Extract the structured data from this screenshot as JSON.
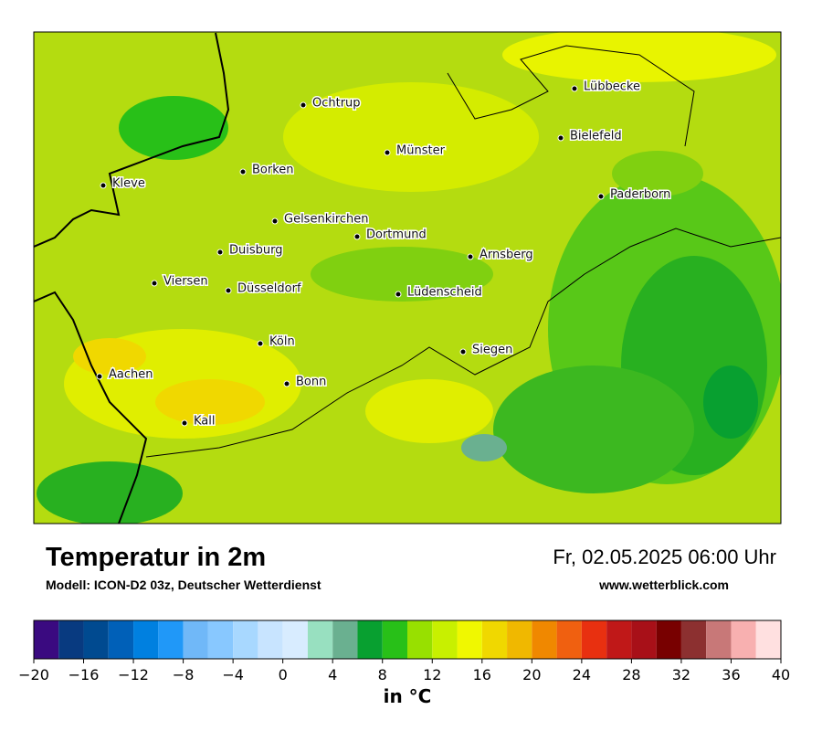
{
  "map": {
    "cities": [
      "Lübbecke",
      "Ochtrup",
      "Bielefeld",
      "Münster",
      "Borken",
      "Kleve",
      "Paderborn",
      "Gelsenkirchen",
      "Dortmund",
      "Duisburg",
      "Arnsberg",
      "Viersen",
      "Düsseldorf",
      "Lüdenscheid",
      "Köln",
      "Siegen",
      "Aachen",
      "Bonn",
      "Kall"
    ]
  },
  "header": {
    "title": "Temperatur in 2m",
    "subtitle": "Modell: ICON-D2 03z, Deutscher Wetterdienst",
    "datetime": "Fr, 02.05.2025 06:00 Uhr",
    "website": "www.wetterblick.com"
  },
  "colorbar": {
    "bounds": [
      -20,
      -18,
      -16,
      -14,
      -12,
      -10,
      -8,
      -6,
      -4,
      -2,
      0,
      2,
      4,
      6,
      8,
      10,
      12,
      14,
      16,
      18,
      20,
      22,
      24,
      26,
      28,
      30,
      32,
      34,
      36,
      38,
      40
    ],
    "colors": [
      "#3a0a80",
      "#083a80",
      "#004a90",
      "#0060b8",
      "#0080e0",
      "#2098f8",
      "#70b8f8",
      "#88c8ff",
      "#a8d8ff",
      "#c8e4ff",
      "#d8ecff",
      "#98e0c0",
      "#6ab090",
      "#08a030",
      "#28c018",
      "#98e000",
      "#c8f000",
      "#f0f800",
      "#f0d800",
      "#f0b800",
      "#f08800",
      "#f06010",
      "#e83010",
      "#c01818",
      "#a81018",
      "#780000",
      "#8c3030",
      "#c87878",
      "#f8b0b0",
      "#ffe0e0"
    ],
    "xlim": [
      -20,
      40
    ],
    "xticks": [
      {
        "value": -20,
        "label": "−20"
      },
      {
        "value": -16,
        "label": "−16"
      },
      {
        "value": -12,
        "label": "−12"
      },
      {
        "value": -8,
        "label": "−8"
      },
      {
        "value": -4,
        "label": "−4"
      },
      0,
      4,
      8,
      12,
      16,
      20,
      24,
      28,
      32,
      36,
      40
    ],
    "label": "in °C"
  }
}
